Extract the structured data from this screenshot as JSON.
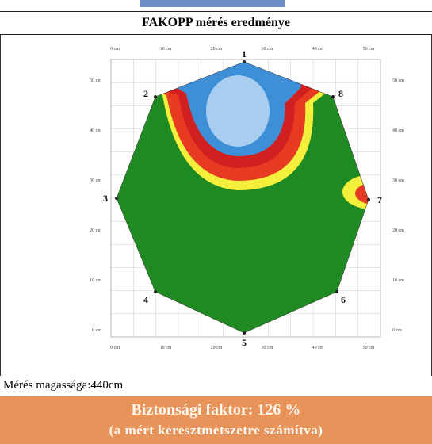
{
  "header": {
    "title": "FAKOPP mérés eredménye"
  },
  "tomogram": {
    "x_axis_labels": [
      "0 cm",
      "10 cm",
      "20 cm",
      "30 cm",
      "40 cm",
      "50 cm"
    ],
    "y_axis_labels": [
      "50 cm",
      "40 cm",
      "30 cm",
      "20 cm",
      "10 cm",
      "0 cm"
    ],
    "sensors": [
      "1",
      "2",
      "3",
      "4",
      "5",
      "6",
      "7",
      "8"
    ]
  },
  "measurement_height": "Mérés magassága:440cm",
  "result": {
    "safety_factor": "Biztonsági faktor: 126 %",
    "note": "(a mért keresztmetszetre számítva)"
  }
}
